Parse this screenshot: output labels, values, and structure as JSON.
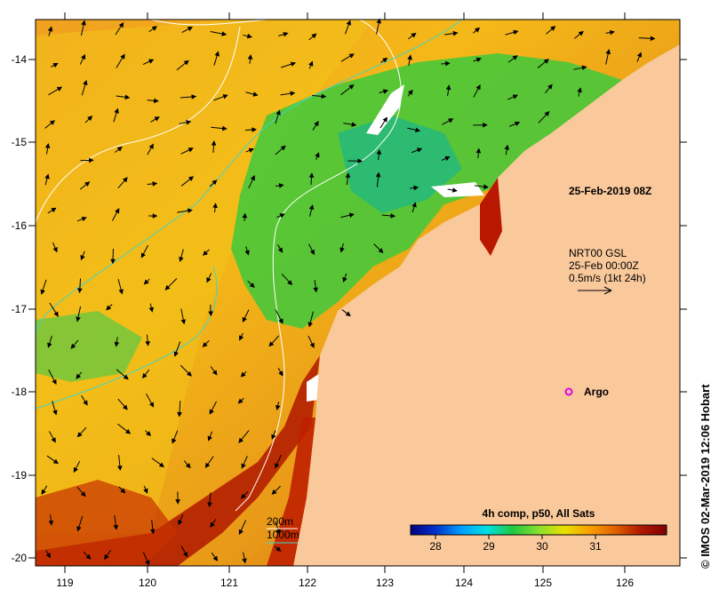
{
  "map": {
    "x_ticks": [
      "119",
      "120",
      "121",
      "122",
      "123",
      "124",
      "125",
      "126"
    ],
    "y_ticks": [
      "-14",
      "-15",
      "-16",
      "-17",
      "-18",
      "-19",
      "-20"
    ],
    "timestamp_label": "25-Feb-2019 08Z",
    "current_info": {
      "line1": "NRT00 GSL",
      "line2": "25-Feb 00:00Z",
      "line3": "0.5m/s (1kt 24h)"
    },
    "argo_label": "Argo",
    "depth_legend": {
      "line1": "200m",
      "line2": "1000m"
    },
    "credit": "© IMOS 02-Mar-2019 12:06 Hobart",
    "colors": {
      "land": "#f9c89b",
      "contour_200m": "#ffffff",
      "contour_1000m": "#3fd6c8",
      "argo": "#e000e0"
    }
  },
  "colorbar": {
    "title": "4h comp, p50, All Sats",
    "ticks": [
      "28",
      "29",
      "30",
      "31"
    ],
    "stops": [
      "#00007f",
      "#0033cc",
      "#00a0ff",
      "#00e0e0",
      "#20c840",
      "#88e030",
      "#e8e000",
      "#f8a000",
      "#e06000",
      "#b01800",
      "#800000"
    ]
  }
}
